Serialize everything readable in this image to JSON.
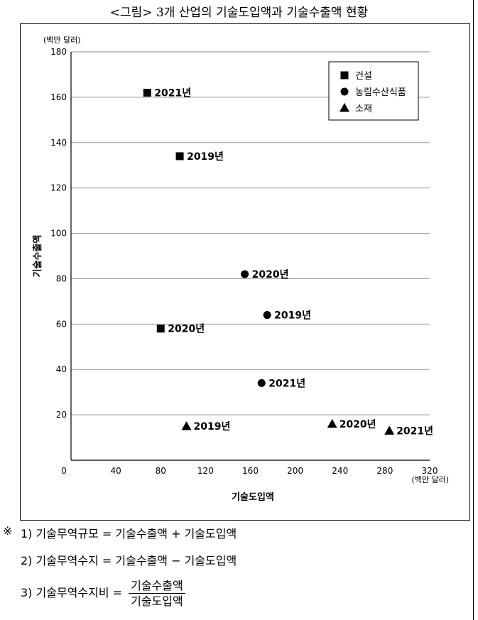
{
  "title": "<그림> 3개 산업의 기술도입액과 기술수출액 현황",
  "chart_data": {
    "type": "scatter",
    "xlabel": "기술도입액",
    "ylabel": "기술수출액",
    "x_unit": "(백만 달러)",
    "y_unit": "(백만 달러)",
    "xlim": [
      0,
      320
    ],
    "ylim": [
      0,
      180
    ],
    "xticks": [
      "0",
      "40",
      "80",
      "120",
      "160",
      "200",
      "240",
      "280",
      "320"
    ],
    "yticks": [
      "20",
      "40",
      "60",
      "80",
      "100",
      "120",
      "140",
      "160",
      "180"
    ],
    "legend_position": "top-right",
    "grid": "horizontal",
    "series": [
      {
        "name": "건설",
        "marker": "square",
        "points": [
          {
            "x": 68,
            "y": 162,
            "label": "2021년"
          },
          {
            "x": 97,
            "y": 134,
            "label": "2019년"
          },
          {
            "x": 80,
            "y": 58,
            "label": "2020년"
          }
        ]
      },
      {
        "name": "농림수산식품",
        "marker": "circle",
        "points": [
          {
            "x": 155,
            "y": 82,
            "label": "2020년"
          },
          {
            "x": 175,
            "y": 64,
            "label": "2019년"
          },
          {
            "x": 170,
            "y": 34,
            "label": "2021년"
          }
        ]
      },
      {
        "name": "소재",
        "marker": "triangle",
        "points": [
          {
            "x": 103,
            "y": 15,
            "label": "2019년"
          },
          {
            "x": 233,
            "y": 16,
            "label": "2020년"
          },
          {
            "x": 284,
            "y": 13,
            "label": "2021년"
          }
        ]
      }
    ]
  },
  "notes": {
    "symbol": "※",
    "line1": "1) 기술무역규모 = 기술수출액 + 기술도입액",
    "line2": "2) 기술무역수지 = 기술수출액 − 기술도입액",
    "line3_prefix": "3) 기술무역수지비 =",
    "line3_numerator": "기술수출액",
    "line3_denominator": "기술도입액"
  }
}
